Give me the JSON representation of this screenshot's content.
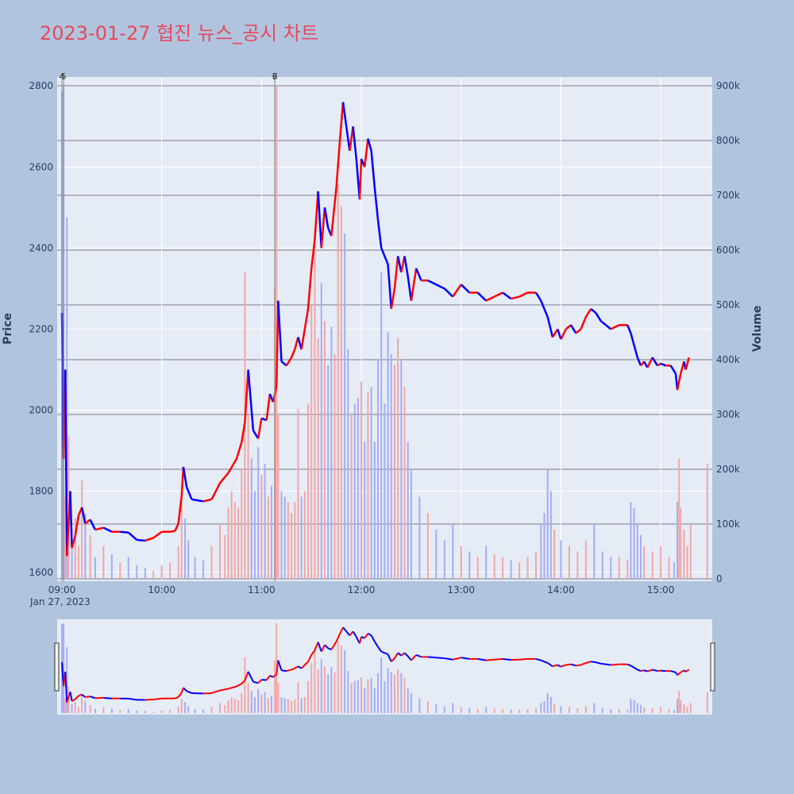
{
  "title": "2023-01-27 협진 뉴스_공시 차트",
  "chart_data": {
    "type": "candlestick",
    "title": "2023-01-27 협진 뉴스_공시 차트",
    "date_label": "Jan 27, 2023",
    "ylabel": "Price",
    "y2label": "Volume",
    "price_ylim": [
      1578,
      2822
    ],
    "volume_ylim": [
      0,
      900000
    ],
    "price_ticks": [
      1600,
      1800,
      2000,
      2200,
      2400,
      2600,
      2800
    ],
    "volume_ticks": [
      0,
      100000,
      200000,
      300000,
      400000,
      500000,
      600000,
      700000,
      800000,
      900000
    ],
    "volume_tick_labels": [
      "0",
      "100k",
      "200k",
      "300k",
      "400k",
      "500k",
      "600k",
      "700k",
      "800k",
      "900k"
    ],
    "x_ticks": [
      "09:00",
      "10:00",
      "11:00",
      "12:00",
      "13:00",
      "14:00",
      "15:00"
    ],
    "time_range": [
      "09:00",
      "15:30"
    ],
    "up_color": "#ff0000",
    "down_color": "#0000ff",
    "news_markers": [
      {
        "time": "09:00",
        "label": "4"
      },
      {
        "time": "09:01",
        "label": "5"
      },
      {
        "time": "11:08",
        "label": "6"
      },
      {
        "time": "11:08",
        "label": "7"
      }
    ],
    "price_path": [
      [
        "09:00",
        2240
      ],
      [
        "09:01",
        1880
      ],
      [
        "09:02",
        2100
      ],
      [
        "09:03",
        1640
      ],
      [
        "09:05",
        1800
      ],
      [
        "09:06",
        1660
      ],
      [
        "09:08",
        1690
      ],
      [
        "09:10",
        1740
      ],
      [
        "09:12",
        1760
      ],
      [
        "09:14",
        1720
      ],
      [
        "09:17",
        1730
      ],
      [
        "09:20",
        1705
      ],
      [
        "09:25",
        1710
      ],
      [
        "09:30",
        1700
      ],
      [
        "09:35",
        1700
      ],
      [
        "09:40",
        1698
      ],
      [
        "09:45",
        1680
      ],
      [
        "09:50",
        1678
      ],
      [
        "09:55",
        1685
      ],
      [
        "10:00",
        1700
      ],
      [
        "10:05",
        1700
      ],
      [
        "10:08",
        1702
      ],
      [
        "10:10",
        1720
      ],
      [
        "10:12",
        1790
      ],
      [
        "10:13",
        1860
      ],
      [
        "10:15",
        1810
      ],
      [
        "10:18",
        1780
      ],
      [
        "10:25",
        1775
      ],
      [
        "10:30",
        1780
      ],
      [
        "10:35",
        1820
      ],
      [
        "10:40",
        1845
      ],
      [
        "10:45",
        1880
      ],
      [
        "10:48",
        1920
      ],
      [
        "10:50",
        1970
      ],
      [
        "10:52",
        2100
      ],
      [
        "10:55",
        1950
      ],
      [
        "10:58",
        1930
      ],
      [
        "11:00",
        1980
      ],
      [
        "11:03",
        1975
      ],
      [
        "11:05",
        2040
      ],
      [
        "11:07",
        2020
      ],
      [
        "11:09",
        2060
      ],
      [
        "11:10",
        2270
      ],
      [
        "11:12",
        2120
      ],
      [
        "11:15",
        2110
      ],
      [
        "11:18",
        2130
      ],
      [
        "11:20",
        2150
      ],
      [
        "11:22",
        2180
      ],
      [
        "11:24",
        2150
      ],
      [
        "11:26",
        2200
      ],
      [
        "11:28",
        2250
      ],
      [
        "11:30",
        2350
      ],
      [
        "11:32",
        2420
      ],
      [
        "11:34",
        2540
      ],
      [
        "11:36",
        2400
      ],
      [
        "11:38",
        2500
      ],
      [
        "11:40",
        2450
      ],
      [
        "11:42",
        2430
      ],
      [
        "11:45",
        2550
      ],
      [
        "11:47",
        2660
      ],
      [
        "11:49",
        2760
      ],
      [
        "11:51",
        2700
      ],
      [
        "11:53",
        2640
      ],
      [
        "11:55",
        2700
      ],
      [
        "11:57",
        2620
      ],
      [
        "11:59",
        2520
      ],
      [
        "12:00",
        2620
      ],
      [
        "12:02",
        2600
      ],
      [
        "12:04",
        2670
      ],
      [
        "12:06",
        2640
      ],
      [
        "12:08",
        2550
      ],
      [
        "12:10",
        2470
      ],
      [
        "12:12",
        2400
      ],
      [
        "12:14",
        2380
      ],
      [
        "12:16",
        2360
      ],
      [
        "12:18",
        2250
      ],
      [
        "12:20",
        2300
      ],
      [
        "12:22",
        2380
      ],
      [
        "12:24",
        2340
      ],
      [
        "12:26",
        2380
      ],
      [
        "12:28",
        2330
      ],
      [
        "12:30",
        2270
      ],
      [
        "12:33",
        2350
      ],
      [
        "12:36",
        2320
      ],
      [
        "12:40",
        2320
      ],
      [
        "12:45",
        2310
      ],
      [
        "12:50",
        2300
      ],
      [
        "12:55",
        2280
      ],
      [
        "13:00",
        2310
      ],
      [
        "13:05",
        2290
      ],
      [
        "13:10",
        2290
      ],
      [
        "13:15",
        2270
      ],
      [
        "13:20",
        2280
      ],
      [
        "13:25",
        2290
      ],
      [
        "13:30",
        2275
      ],
      [
        "13:35",
        2280
      ],
      [
        "13:40",
        2290
      ],
      [
        "13:45",
        2290
      ],
      [
        "13:48",
        2270
      ],
      [
        "13:50",
        2250
      ],
      [
        "13:52",
        2230
      ],
      [
        "13:55",
        2180
      ],
      [
        "13:58",
        2200
      ],
      [
        "14:00",
        2175
      ],
      [
        "14:03",
        2200
      ],
      [
        "14:06",
        2210
      ],
      [
        "14:09",
        2190
      ],
      [
        "14:12",
        2200
      ],
      [
        "14:15",
        2230
      ],
      [
        "14:18",
        2250
      ],
      [
        "14:21",
        2240
      ],
      [
        "14:24",
        2220
      ],
      [
        "14:27",
        2210
      ],
      [
        "14:30",
        2200
      ],
      [
        "14:35",
        2210
      ],
      [
        "14:40",
        2210
      ],
      [
        "14:42",
        2190
      ],
      [
        "14:44",
        2160
      ],
      [
        "14:46",
        2130
      ],
      [
        "14:48",
        2110
      ],
      [
        "14:50",
        2120
      ],
      [
        "14:52",
        2105
      ],
      [
        "14:55",
        2130
      ],
      [
        "14:58",
        2110
      ],
      [
        "15:00",
        2115
      ],
      [
        "15:03",
        2110
      ],
      [
        "15:06",
        2110
      ],
      [
        "15:09",
        2090
      ],
      [
        "15:10",
        2050
      ],
      [
        "15:12",
        2090
      ],
      [
        "15:14",
        2120
      ],
      [
        "15:15",
        2100
      ],
      [
        "15:17",
        2130
      ]
    ],
    "volume_bars": [
      [
        "09:00",
        890000
      ],
      [
        "09:01",
        900000
      ],
      [
        "09:02",
        150000
      ],
      [
        "09:03",
        660000
      ],
      [
        "09:04",
        260000
      ],
      [
        "09:06",
        90000
      ],
      [
        "09:08",
        110000
      ],
      [
        "09:10",
        60000
      ],
      [
        "09:12",
        180000
      ],
      [
        "09:14",
        120000
      ],
      [
        "09:17",
        80000
      ],
      [
        "09:20",
        40000
      ],
      [
        "09:25",
        60000
      ],
      [
        "09:30",
        45000
      ],
      [
        "09:35",
        30000
      ],
      [
        "09:40",
        40000
      ],
      [
        "09:45",
        25000
      ],
      [
        "09:50",
        20000
      ],
      [
        "09:55",
        15000
      ],
      [
        "10:00",
        25000
      ],
      [
        "10:05",
        30000
      ],
      [
        "10:10",
        60000
      ],
      [
        "10:12",
        140000
      ],
      [
        "10:14",
        110000
      ],
      [
        "10:16",
        70000
      ],
      [
        "10:20",
        40000
      ],
      [
        "10:25",
        35000
      ],
      [
        "10:30",
        60000
      ],
      [
        "10:35",
        100000
      ],
      [
        "10:38",
        80000
      ],
      [
        "10:40",
        130000
      ],
      [
        "10:42",
        160000
      ],
      [
        "10:44",
        140000
      ],
      [
        "10:46",
        130000
      ],
      [
        "10:48",
        200000
      ],
      [
        "10:50",
        560000
      ],
      [
        "10:52",
        300000
      ],
      [
        "10:54",
        220000
      ],
      [
        "10:56",
        160000
      ],
      [
        "10:58",
        240000
      ],
      [
        "11:00",
        190000
      ],
      [
        "11:02",
        210000
      ],
      [
        "11:04",
        150000
      ],
      [
        "11:06",
        170000
      ],
      [
        "11:08",
        530000
      ],
      [
        "11:09",
        900000
      ],
      [
        "11:10",
        300000
      ],
      [
        "11:12",
        160000
      ],
      [
        "11:14",
        150000
      ],
      [
        "11:16",
        140000
      ],
      [
        "11:18",
        120000
      ],
      [
        "11:20",
        140000
      ],
      [
        "11:22",
        310000
      ],
      [
        "11:24",
        150000
      ],
      [
        "11:26",
        160000
      ],
      [
        "11:28",
        320000
      ],
      [
        "11:30",
        500000
      ],
      [
        "11:32",
        640000
      ],
      [
        "11:34",
        440000
      ],
      [
        "11:36",
        540000
      ],
      [
        "11:38",
        470000
      ],
      [
        "11:40",
        390000
      ],
      [
        "11:42",
        460000
      ],
      [
        "11:44",
        410000
      ],
      [
        "11:46",
        720000
      ],
      [
        "11:48",
        680000
      ],
      [
        "11:50",
        630000
      ],
      [
        "11:52",
        420000
      ],
      [
        "11:54",
        300000
      ],
      [
        "11:56",
        320000
      ],
      [
        "11:58",
        330000
      ],
      [
        "12:00",
        360000
      ],
      [
        "12:02",
        250000
      ],
      [
        "12:04",
        340000
      ],
      [
        "12:06",
        350000
      ],
      [
        "12:08",
        250000
      ],
      [
        "12:10",
        400000
      ],
      [
        "12:12",
        560000
      ],
      [
        "12:14",
        320000
      ],
      [
        "12:16",
        450000
      ],
      [
        "12:18",
        410000
      ],
      [
        "12:20",
        390000
      ],
      [
        "12:22",
        440000
      ],
      [
        "12:24",
        400000
      ],
      [
        "12:26",
        350000
      ],
      [
        "12:28",
        250000
      ],
      [
        "12:30",
        200000
      ],
      [
        "12:35",
        150000
      ],
      [
        "12:40",
        120000
      ],
      [
        "12:45",
        90000
      ],
      [
        "12:50",
        70000
      ],
      [
        "12:55",
        100000
      ],
      [
        "13:00",
        60000
      ],
      [
        "13:05",
        50000
      ],
      [
        "13:10",
        40000
      ],
      [
        "13:15",
        60000
      ],
      [
        "13:20",
        45000
      ],
      [
        "13:25",
        40000
      ],
      [
        "13:30",
        35000
      ],
      [
        "13:35",
        30000
      ],
      [
        "13:40",
        40000
      ],
      [
        "13:45",
        50000
      ],
      [
        "13:48",
        100000
      ],
      [
        "13:50",
        120000
      ],
      [
        "13:52",
        200000
      ],
      [
        "13:54",
        160000
      ],
      [
        "13:56",
        90000
      ],
      [
        "14:00",
        70000
      ],
      [
        "14:05",
        60000
      ],
      [
        "14:10",
        50000
      ],
      [
        "14:15",
        70000
      ],
      [
        "14:20",
        100000
      ],
      [
        "14:25",
        50000
      ],
      [
        "14:30",
        40000
      ],
      [
        "14:35",
        40000
      ],
      [
        "14:40",
        35000
      ],
      [
        "14:42",
        140000
      ],
      [
        "14:44",
        130000
      ],
      [
        "14:46",
        100000
      ],
      [
        "14:48",
        80000
      ],
      [
        "14:50",
        60000
      ],
      [
        "14:55",
        50000
      ],
      [
        "15:00",
        60000
      ],
      [
        "15:05",
        40000
      ],
      [
        "15:08",
        30000
      ],
      [
        "15:10",
        140000
      ],
      [
        "15:11",
        220000
      ],
      [
        "15:12",
        130000
      ],
      [
        "15:14",
        90000
      ],
      [
        "15:16",
        60000
      ],
      [
        "15:18",
        100000
      ],
      [
        "15:28",
        210000
      ]
    ]
  }
}
